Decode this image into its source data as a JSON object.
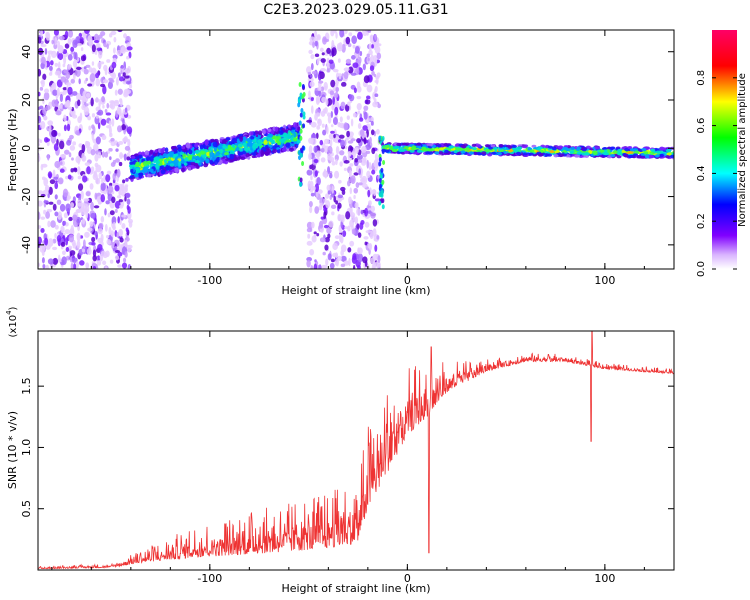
{
  "title": "C2E3.2023.029.05.11.G31",
  "chart_data": [
    {
      "type": "heatmap",
      "xlabel": "Height of straight line (km)",
      "ylabel": "Frequency (Hz)",
      "xlim": [
        -187,
        135
      ],
      "ylim": [
        -50,
        49
      ],
      "xticks": [
        "-100",
        "0",
        "100"
      ],
      "yticks": [
        "40",
        "20",
        "0",
        "-20",
        "-40"
      ],
      "colorbar": {
        "label": "Normalized spectral amplitude",
        "range": [
          0,
          1
        ],
        "ticks": [
          "0.0",
          "0.2",
          "0.4",
          "0.6",
          "0.8"
        ],
        "colormap": "rainbow (white-purple-blue-cyan-green-yellow-red-magenta)"
      },
      "regions": [
        {
          "x": [
            -187,
            -140
          ],
          "pattern": "scattered noise",
          "freq_range": [
            -50,
            49
          ]
        },
        {
          "x": [
            -140,
            -55
          ],
          "pattern": "band",
          "center_freq": [
            -8,
            5
          ],
          "half_width": 5
        },
        {
          "x": [
            -55,
            -52
          ],
          "pattern": "spike",
          "freq_range": [
            -15,
            28
          ]
        },
        {
          "x": [
            -50,
            -14
          ],
          "pattern": "scattered noise",
          "freq_range": [
            -50,
            49
          ]
        },
        {
          "x": [
            -14,
            -12
          ],
          "pattern": "spike",
          "freq_range": [
            -25,
            5
          ]
        },
        {
          "x": [
            -12,
            135
          ],
          "pattern": "narrow band",
          "center_freq": [
            0,
            -2
          ],
          "half_width": 2
        }
      ]
    },
    {
      "type": "line",
      "xlabel": "Height of straight line (km)",
      "ylabel": "SNR (10 * v/v)",
      "y_exponent": "(x10",
      "y_exponent_power": "4",
      "xlim": [
        -187,
        135
      ],
      "ylim": [
        0,
        1.95
      ],
      "xticks": [
        "-100",
        "0",
        "100"
      ],
      "yticks": [
        "0.5",
        "1.0",
        "1.5"
      ],
      "color": "#ee3333",
      "envelope": [
        {
          "x": -187,
          "base": 0.01,
          "amp": 0.02
        },
        {
          "x": -150,
          "base": 0.02,
          "amp": 0.03
        },
        {
          "x": -135,
          "base": 0.06,
          "amp": 0.1
        },
        {
          "x": -110,
          "base": 0.1,
          "amp": 0.25
        },
        {
          "x": -80,
          "base": 0.13,
          "amp": 0.35
        },
        {
          "x": -60,
          "base": 0.15,
          "amp": 0.4
        },
        {
          "x": -40,
          "base": 0.18,
          "amp": 0.45
        },
        {
          "x": -25,
          "base": 0.22,
          "amp": 0.55
        },
        {
          "x": -20,
          "base": 0.5,
          "amp": 0.7
        },
        {
          "x": -10,
          "base": 0.8,
          "amp": 0.7
        },
        {
          "x": 0,
          "base": 1.1,
          "amp": 0.55
        },
        {
          "x": 10,
          "base": 1.25,
          "amp": 0.45
        },
        {
          "x": 20,
          "base": 1.45,
          "amp": 0.25
        },
        {
          "x": 40,
          "base": 1.62,
          "amp": 0.1
        },
        {
          "x": 60,
          "base": 1.7,
          "amp": 0.08
        },
        {
          "x": 80,
          "base": 1.7,
          "amp": 0.06
        },
        {
          "x": 100,
          "base": 1.64,
          "amp": 0.05
        },
        {
          "x": 135,
          "base": 1.6,
          "amp": 0.04
        }
      ],
      "notable_points": [
        {
          "x": 11,
          "y": 0.14
        },
        {
          "x": 12,
          "y": 1.82
        },
        {
          "x": 93,
          "y": 1.05
        },
        {
          "x": 93.5,
          "y": 1.95
        }
      ]
    }
  ]
}
